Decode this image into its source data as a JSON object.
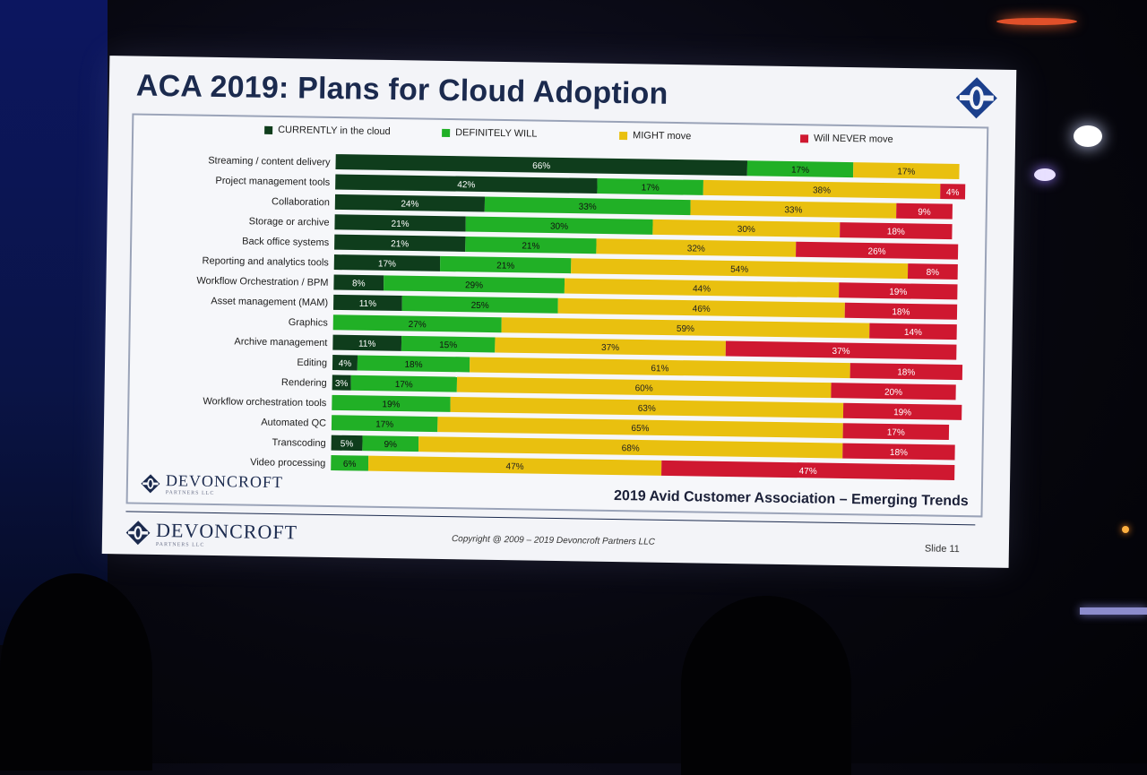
{
  "slide": {
    "title": "ACA 2019: Plans for Cloud Adoption",
    "footer_subtitle": "2019 Avid Customer Association – Emerging Trends",
    "brand_name": "DEVONCROFT",
    "brand_sub": "PARTNERS LLC",
    "copyright": "Copyright @ 2009 – 2019 Devoncroft Partners LLC",
    "slide_number": "Slide 11"
  },
  "colors": {
    "currently": "#0f3d1c",
    "definitely": "#21b026",
    "might": "#e9c00f",
    "never": "#cf1830"
  },
  "chart_data": {
    "type": "bar",
    "orientation": "horizontal",
    "stacked": true,
    "title": "",
    "xlabel": "",
    "ylabel": "",
    "xlim": [
      0,
      100
    ],
    "legend": "top",
    "grid": false,
    "categories": [
      "Streaming / content delivery",
      "Project management tools",
      "Collaboration",
      "Storage or archive",
      "Back office systems",
      "Reporting and analytics tools",
      "Workflow Orchestration / BPM",
      "Asset management (MAM)",
      "Graphics",
      "Archive management",
      "Editing",
      "Rendering",
      "Workflow orchestration tools",
      "Automated QC",
      "Transcoding",
      "Video processing"
    ],
    "series": [
      {
        "name": "CURRENTLY in the cloud",
        "values": [
          66,
          42,
          24,
          21,
          21,
          17,
          8,
          11,
          0,
          11,
          4,
          3,
          0,
          0,
          5,
          0
        ]
      },
      {
        "name": "DEFINITELY WILL",
        "values": [
          17,
          17,
          33,
          30,
          21,
          21,
          29,
          25,
          27,
          15,
          18,
          17,
          19,
          17,
          9,
          6
        ]
      },
      {
        "name": "MIGHT move",
        "values": [
          17,
          38,
          33,
          30,
          32,
          54,
          44,
          46,
          59,
          37,
          61,
          60,
          63,
          65,
          68,
          47
        ]
      },
      {
        "name": "Will NEVER move",
        "values": [
          0,
          4,
          9,
          18,
          26,
          8,
          19,
          18,
          14,
          37,
          18,
          20,
          19,
          17,
          18,
          47
        ]
      }
    ]
  }
}
